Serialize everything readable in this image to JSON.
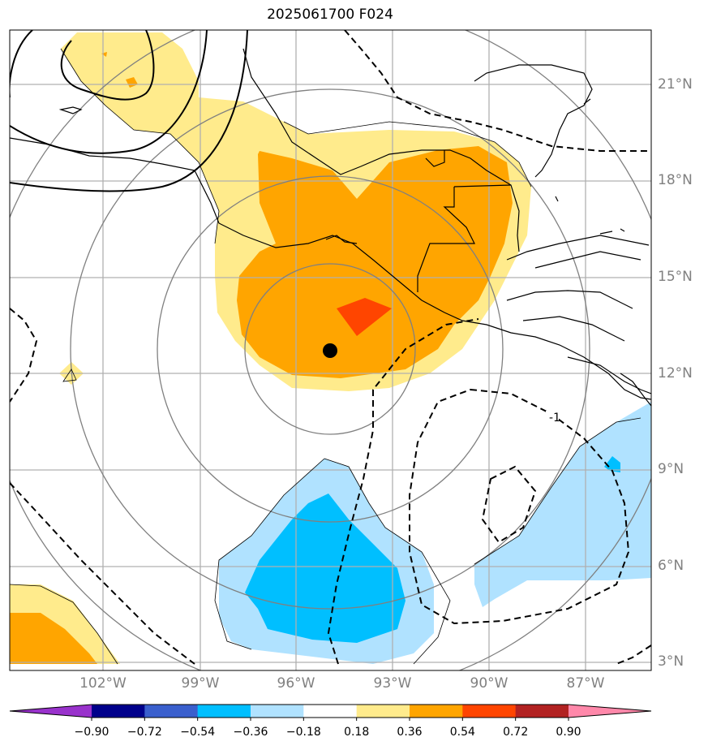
{
  "title": "2025061700 F024",
  "lat_labels": [
    "21°N",
    "18°N",
    "15°N",
    "12°N",
    "9°N",
    "6°N",
    "3°N"
  ],
  "lon_labels": [
    "102°W",
    "99°W",
    "96°W",
    "93°W",
    "90°W",
    "87°W"
  ],
  "contour_label": "-1",
  "colorbar": {
    "ticks": [
      "−0.90",
      "−0.72",
      "−0.54",
      "−0.36",
      "−0.18",
      "0.18",
      "0.36",
      "0.54",
      "0.72",
      "0.90"
    ],
    "colors": [
      "#9932cc",
      "#00008b",
      "#3a5fcd",
      "#00bfff",
      "#b0e2ff",
      "#ffffff",
      "#ffeb8c",
      "#ffa500",
      "#ff4500",
      "#b22222",
      "#ff88aa"
    ]
  },
  "colors": {
    "light_yellow": "#ffeb8c",
    "orange": "#ffa500",
    "red_orange": "#ff4500",
    "light_blue": "#b0e2ff",
    "deep_sky_blue": "#00bfff",
    "gridline": "#b0b0b0",
    "range_ring": "#808080"
  },
  "center_marker": "storm-center"
}
